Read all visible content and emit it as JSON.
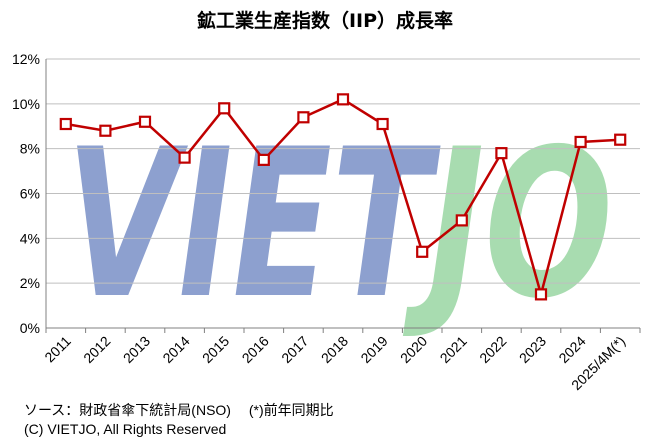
{
  "chart_data": {
    "type": "line",
    "title": "鉱工業生産指数（IIP）成長率",
    "categories": [
      "2011",
      "2012",
      "2013",
      "2014",
      "2015",
      "2016",
      "2017",
      "2018",
      "2019",
      "2020",
      "2021",
      "2022",
      "2023",
      "2024",
      "2025/4M(*)"
    ],
    "series": [
      {
        "values": [
          9.1,
          8.8,
          9.2,
          7.6,
          9.8,
          7.5,
          9.4,
          10.2,
          9.1,
          3.4,
          4.8,
          7.8,
          1.5,
          8.3,
          8.4
        ]
      }
    ],
    "ylim": [
      0,
      12
    ],
    "yticks": [
      "0%",
      "2%",
      "4%",
      "6%",
      "8%",
      "10%",
      "12%"
    ],
    "grid": true,
    "colors": {
      "line": "#c00000",
      "marker_fill": "#ffffff",
      "watermark_left": "#8da0cf",
      "watermark_right": "#a8dcb0"
    }
  },
  "watermark": {
    "left": "VIET",
    "right": "JO"
  },
  "footnotes": {
    "source": "ソース：財政省傘下統計局(NSO)　 (*)前年同期比",
    "copyright": "(C) VIETJO, All Rights Reserved"
  }
}
